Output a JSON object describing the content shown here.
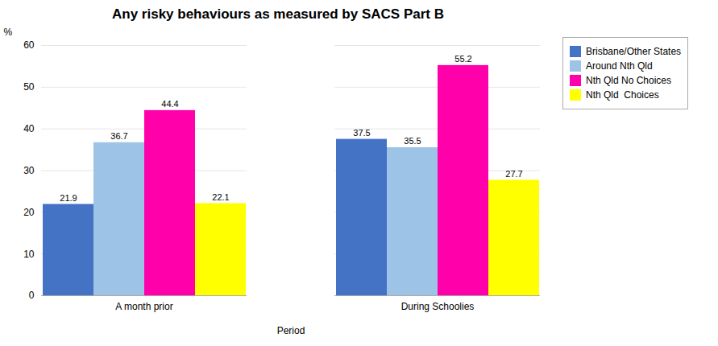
{
  "chart_data": {
    "type": "bar",
    "title": "Any risky behaviours as measured by SACS Part B",
    "xlabel": "Period",
    "ylabel": "%",
    "categories": [
      "A month prior",
      "During Schoolies"
    ],
    "series": [
      {
        "name": "Brisbane/Other States",
        "color": "#4472C4",
        "values": [
          21.9,
          37.5
        ]
      },
      {
        "name": "Around Nth Qld",
        "color": "#9DC3E6",
        "values": [
          36.7,
          35.5
        ]
      },
      {
        "name": "Nth Qld No Choices",
        "color": "#FF00AA",
        "values": [
          44.4,
          55.2
        ]
      },
      {
        "name": "Nth Qld  Choices",
        "color": "#FFFF00",
        "values": [
          22.1,
          27.7
        ]
      }
    ],
    "ylim": [
      0,
      60
    ],
    "yticks": [
      0,
      10,
      20,
      30,
      40,
      50,
      60
    ],
    "grid": true,
    "legend": "right",
    "data_labels": true
  }
}
